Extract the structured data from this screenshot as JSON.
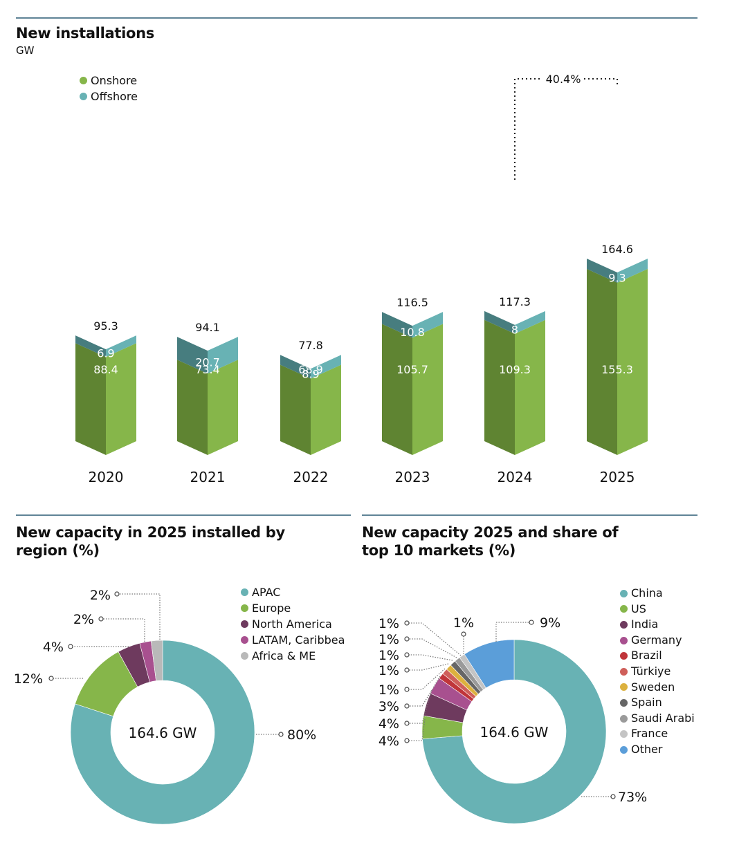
{
  "colors": {
    "onshore_light": "#86b64a",
    "onshore_dark": "#5f8432",
    "offshore_light": "#68b2b4",
    "offshore_dark": "#477d7f",
    "rule": "#5f8396"
  },
  "chart_data": [
    {
      "type": "bar",
      "title": "New installations",
      "subtitle": "GW",
      "xlabel": "",
      "ylabel": "GW",
      "stacked": true,
      "categories": [
        "2020",
        "2021",
        "2022",
        "2023",
        "2024",
        "2025"
      ],
      "series": [
        {
          "name": "Onshore",
          "color": "#86b64a",
          "values": [
            88.4,
            73.4,
            68.9,
            105.7,
            109.3,
            155.3
          ]
        },
        {
          "name": "Offshore",
          "color": "#68b2b4",
          "values": [
            6.9,
            20.7,
            8.9,
            10.8,
            8,
            9.3
          ]
        }
      ],
      "totals": [
        95.3,
        94.1,
        77.8,
        116.5,
        117.3,
        164.6
      ],
      "annotation": {
        "text": "40.4%",
        "from": "2024",
        "to": "2025",
        "meaning": "growth 2024 to 2025"
      },
      "legend": {
        "position": "top-left",
        "entries": [
          "Onshore",
          "Offshore"
        ]
      },
      "grid": false
    },
    {
      "type": "pie",
      "donut": true,
      "title": "New capacity in 2025 installed by region (%)",
      "center_label": "164.6 GW",
      "slices": [
        {
          "label": "APAC",
          "value": 80,
          "display": "80%",
          "color": "#68b2b4"
        },
        {
          "label": "Europe",
          "value": 12,
          "display": "12%",
          "color": "#86b64a"
        },
        {
          "label": "North America",
          "value": 4,
          "display": "4%",
          "color": "#6e3a5e"
        },
        {
          "label": "LATAM, Caribbea",
          "value": 2,
          "display": "2%",
          "color": "#a8508f"
        },
        {
          "label": "Africa & ME",
          "value": 2,
          "display": "2%",
          "color": "#b9b9b9"
        }
      ],
      "legend": {
        "position": "top-right"
      }
    },
    {
      "type": "pie",
      "donut": true,
      "title": "New capacity 2025 and share of top 10 markets (%)",
      "center_label": "164.6 GW",
      "slices": [
        {
          "label": "China",
          "value": 73,
          "display": "73%",
          "color": "#68b2b4"
        },
        {
          "label": "US",
          "value": 4,
          "display": "4%",
          "color": "#86b64a"
        },
        {
          "label": "India",
          "value": 4,
          "display": "4%",
          "color": "#6e3a5e"
        },
        {
          "label": "Germany",
          "value": 3,
          "display": "3%",
          "color": "#a8508f"
        },
        {
          "label": "Brazil",
          "value": 1,
          "display": "1%",
          "color": "#c0353a"
        },
        {
          "label": "Türkiye",
          "value": 1,
          "display": "1%",
          "color": "#cf5f5a"
        },
        {
          "label": "Sweden",
          "value": 1,
          "display": "1%",
          "color": "#dcb13e"
        },
        {
          "label": "Spain",
          "value": 1,
          "display": "1%",
          "color": "#666666"
        },
        {
          "label": "Saudi Arabi",
          "value": 1,
          "display": "1%",
          "color": "#9a9a9a"
        },
        {
          "label": "France",
          "value": 1,
          "display": "1%",
          "color": "#c4c4c4"
        },
        {
          "label": "Other",
          "value": 9,
          "display": "9%",
          "color": "#5b9ed9"
        }
      ],
      "legend": {
        "position": "top-right"
      }
    }
  ]
}
